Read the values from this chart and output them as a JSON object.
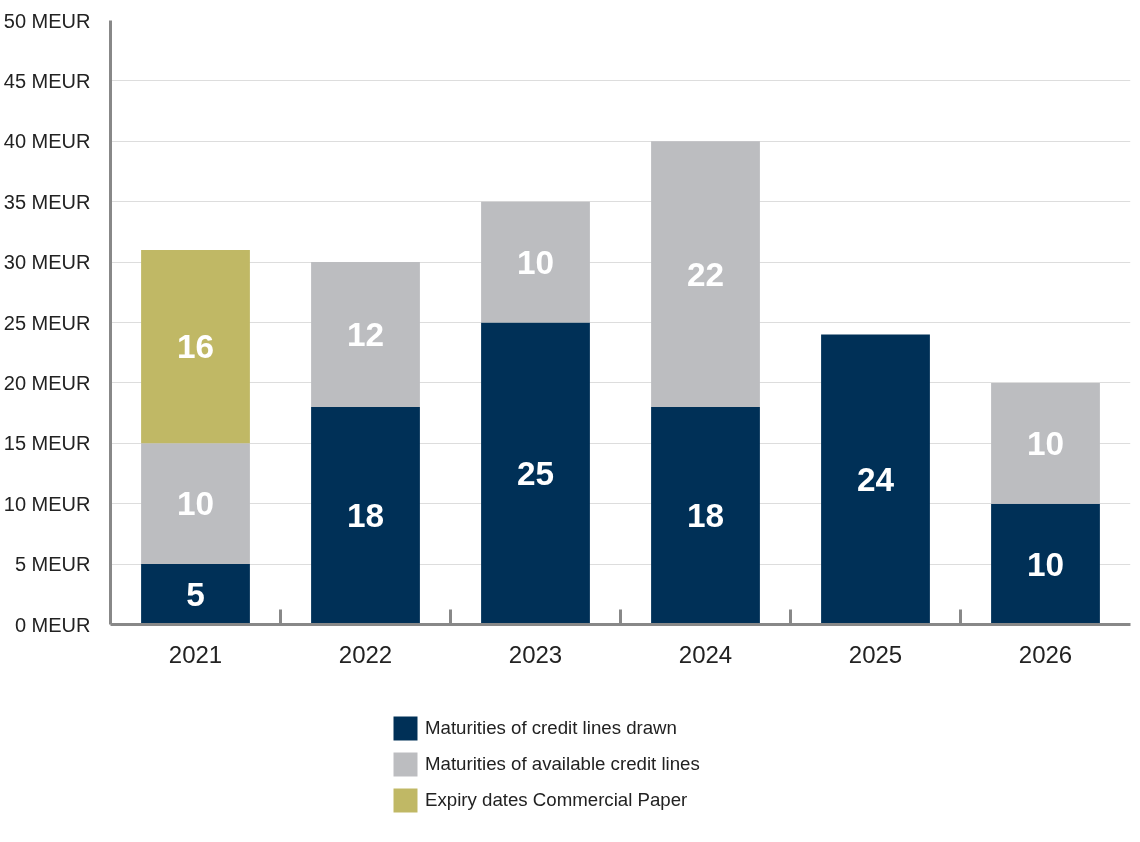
{
  "chart_data": {
    "type": "bar",
    "stacked": true,
    "categories": [
      "2021",
      "2022",
      "2023",
      "2024",
      "2025",
      "2026"
    ],
    "series": [
      {
        "name": "Maturities of credit lines drawn",
        "color": "#003057",
        "values": [
          5,
          18,
          25,
          18,
          24,
          10
        ]
      },
      {
        "name": "Maturities of available credit lines",
        "color": "#bcbdc0",
        "values": [
          10,
          12,
          10,
          22,
          null,
          10
        ]
      },
      {
        "name": "Expiry dates Commercial Paper",
        "color": "#c0b865",
        "values": [
          16,
          null,
          null,
          null,
          null,
          null
        ]
      }
    ],
    "ylim": [
      0,
      50
    ],
    "yticks": [
      {
        "value": 0,
        "label": "0 MEUR"
      },
      {
        "value": 5,
        "label": "5 MEUR"
      },
      {
        "value": 10,
        "label": "10 MEUR"
      },
      {
        "value": 15,
        "label": "15 MEUR"
      },
      {
        "value": 20,
        "label": "20 MEUR"
      },
      {
        "value": 25,
        "label": "25 MEUR"
      },
      {
        "value": 30,
        "label": "30 MEUR"
      },
      {
        "value": 35,
        "label": "35 MEUR"
      },
      {
        "value": 40,
        "label": "40 MEUR"
      },
      {
        "value": 45,
        "label": "45 MEUR"
      },
      {
        "value": 50,
        "label": "50 MEUR"
      }
    ],
    "grid": "y",
    "legend": "bottom",
    "data_labels": true
  }
}
